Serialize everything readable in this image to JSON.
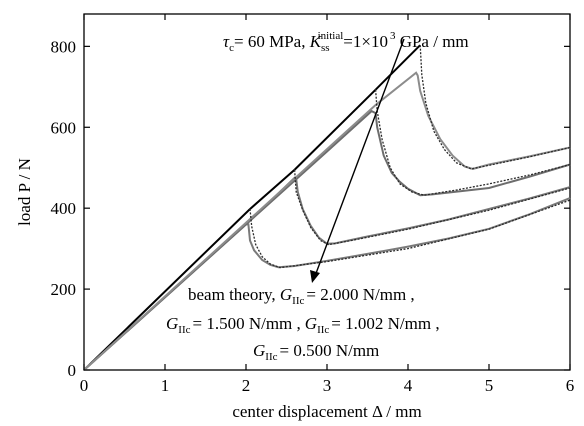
{
  "chart_data": {
    "type": "line",
    "xlabel": "center displacement Δ / mm",
    "ylabel": "load P / N",
    "xlim": [
      0,
      6
    ],
    "ylim": [
      0,
      880
    ],
    "x_ticks": [
      0,
      1,
      2,
      3,
      4,
      5,
      6
    ],
    "y_ticks": [
      0,
      200,
      400,
      600,
      800
    ],
    "grid": false,
    "annotations": {
      "top_label": {
        "tau": "τ",
        "tau_sub": "c",
        "eq1": "= 60 MPa, ",
        "K": "K",
        "K_sub": "ss",
        "K_sup": "initial",
        "eq2": "=1×10",
        "exp": "3",
        "unit": " GPa / mm"
      },
      "bottom_label": {
        "line1_prefix": "beam theory, ",
        "line1_value": "= 2.000 N/mm ,",
        "line2_value_a": "= 1.500 N/mm ,",
        "line2_value_b": "= 1.002 N/mm ,",
        "line3_value": "= 0.500 N/mm",
        "G": "G",
        "G_sub": "IIc"
      }
    },
    "series": [
      {
        "color": "#000000",
        "role": "beam-theory",
        "segments": [
          [
            [
              0,
              0
            ],
            [
              2.05,
              398
            ]
          ],
          [
            [
              2.05,
              398
            ],
            [
              2.6,
              495
            ]
          ],
          [
            [
              2.6,
              495
            ],
            [
              3.6,
              693
            ]
          ],
          [
            [
              3.6,
              693
            ],
            [
              4.15,
              803
            ]
          ]
        ]
      },
      {
        "color": "#7a7a7a",
        "role": "GIIc=0.500",
        "points": [
          [
            0,
            0
          ],
          [
            1.0,
            180
          ],
          [
            2.0,
            360
          ],
          [
            2.03,
            360
          ],
          [
            2.05,
            320
          ],
          [
            2.1,
            296
          ],
          [
            2.2,
            272
          ],
          [
            2.3,
            260
          ],
          [
            2.4,
            254
          ],
          [
            2.6,
            257
          ],
          [
            3.0,
            270
          ],
          [
            3.5,
            287
          ],
          [
            4.0,
            305
          ],
          [
            4.5,
            325
          ],
          [
            5.0,
            349
          ],
          [
            5.5,
            385
          ],
          [
            6.0,
            425
          ]
        ]
      },
      {
        "color": "#777777",
        "role": "GIIc=1.002",
        "points": [
          [
            0,
            0
          ],
          [
            1.0,
            180
          ],
          [
            2.0,
            360
          ],
          [
            2.6,
            475
          ],
          [
            2.62,
            472
          ],
          [
            2.64,
            440
          ],
          [
            2.7,
            398
          ],
          [
            2.8,
            356
          ],
          [
            2.9,
            327
          ],
          [
            3.0,
            312
          ],
          [
            3.1,
            313
          ],
          [
            3.5,
            330
          ],
          [
            4.0,
            350
          ],
          [
            4.5,
            372
          ],
          [
            5.0,
            398
          ],
          [
            5.5,
            424
          ],
          [
            6.0,
            452
          ]
        ]
      },
      {
        "color": "#6d6d6d",
        "role": "GIIc=1.500",
        "points": [
          [
            0,
            0
          ],
          [
            1.0,
            180
          ],
          [
            2.0,
            360
          ],
          [
            3.0,
            540
          ],
          [
            3.55,
            640
          ],
          [
            3.6,
            635
          ],
          [
            3.62,
            600
          ],
          [
            3.7,
            530
          ],
          [
            3.8,
            487
          ],
          [
            3.9,
            465
          ],
          [
            4.0,
            448
          ],
          [
            4.15,
            432
          ],
          [
            4.3,
            434
          ],
          [
            5.0,
            450
          ],
          [
            5.5,
            478
          ],
          [
            6.0,
            508
          ]
        ]
      },
      {
        "color": "#8c8c8c",
        "role": "GIIc=2.000",
        "points": [
          [
            0,
            0
          ],
          [
            1.0,
            182
          ],
          [
            2.0,
            364
          ],
          [
            3.0,
            546
          ],
          [
            3.6,
            655
          ],
          [
            4.1,
            735
          ],
          [
            4.12,
            728
          ],
          [
            4.15,
            690
          ],
          [
            4.25,
            628
          ],
          [
            4.4,
            570
          ],
          [
            4.55,
            530
          ],
          [
            4.7,
            503
          ],
          [
            4.8,
            497
          ],
          [
            5.0,
            508
          ],
          [
            5.5,
            528
          ],
          [
            6.0,
            550
          ]
        ]
      },
      {
        "color": "#2a2a2a",
        "role": "GIIc=1.500-dark",
        "points": [
          [
            3.6,
            693
          ],
          [
            3.62,
            640
          ],
          [
            3.68,
            570
          ],
          [
            3.78,
            500
          ],
          [
            3.9,
            460
          ],
          [
            4.05,
            440
          ],
          [
            4.2,
            432
          ],
          [
            4.6,
            445
          ],
          [
            5.0,
            460
          ],
          [
            5.5,
            482
          ],
          [
            6.0,
            508
          ]
        ]
      },
      {
        "color": "#2a2a2a",
        "role": "GIIc=1.002-dark",
        "points": [
          [
            2.6,
            495
          ],
          [
            2.62,
            440
          ],
          [
            2.7,
            395
          ],
          [
            2.8,
            352
          ],
          [
            2.92,
            320
          ],
          [
            3.02,
            310
          ],
          [
            3.3,
            320
          ],
          [
            4.0,
            348
          ],
          [
            5.0,
            395
          ],
          [
            6.0,
            450
          ]
        ]
      },
      {
        "color": "#2a2a2a",
        "role": "GIIc=0.500-dark",
        "points": [
          [
            2.05,
            398
          ],
          [
            2.07,
            355
          ],
          [
            2.12,
            310
          ],
          [
            2.2,
            280
          ],
          [
            2.3,
            262
          ],
          [
            2.42,
            253
          ],
          [
            3.0,
            268
          ],
          [
            4.0,
            300
          ],
          [
            5.0,
            348
          ],
          [
            6.0,
            420
          ]
        ]
      },
      {
        "color": "#2a2a2a",
        "role": "GIIc=2.000-dark",
        "points": [
          [
            4.15,
            803
          ],
          [
            4.17,
            730
          ],
          [
            4.22,
            660
          ],
          [
            4.32,
            590
          ],
          [
            4.45,
            545
          ],
          [
            4.6,
            512
          ],
          [
            4.78,
            497
          ],
          [
            5.0,
            506
          ],
          [
            5.5,
            527
          ],
          [
            6.0,
            550
          ]
        ]
      }
    ]
  }
}
